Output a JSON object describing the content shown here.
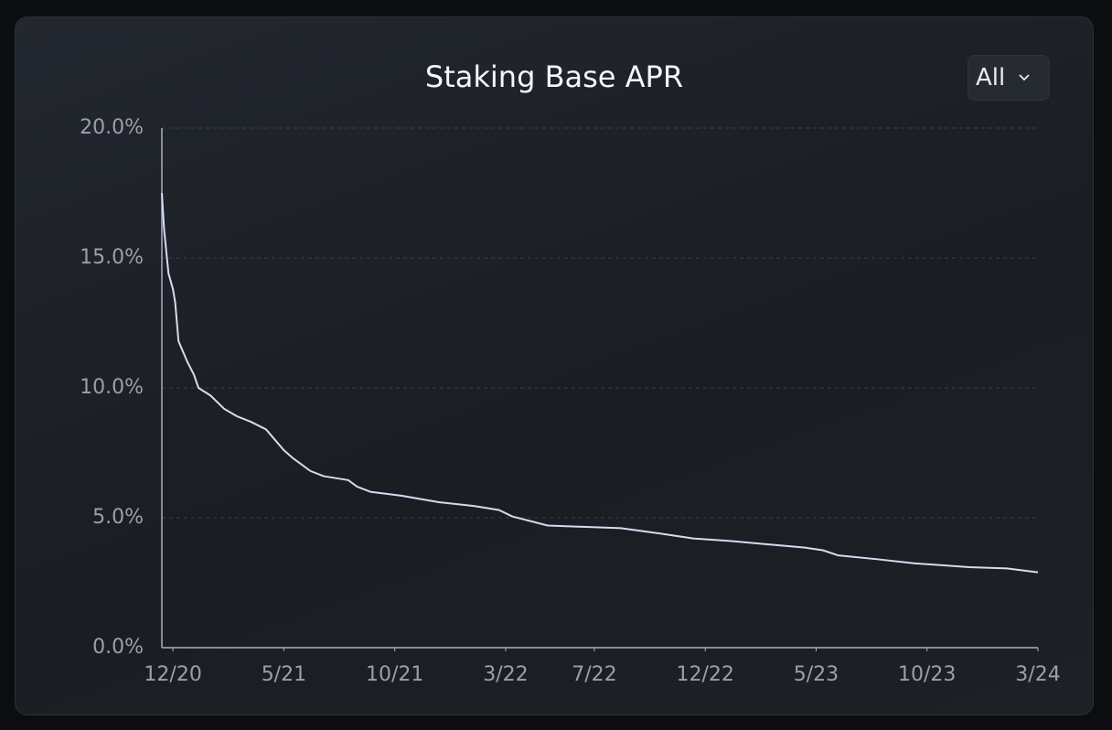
{
  "chart_data": {
    "type": "line",
    "title": "Staking Base APR",
    "range_selector": "All",
    "x": [
      -0.5,
      -0.4,
      -0.2,
      0,
      0.1,
      0.25,
      0.65,
      0.95,
      1.15,
      1.7,
      2.3,
      2.9,
      3.5,
      4.2,
      4.6,
      5,
      5.4,
      6.2,
      6.8,
      7.9,
      8.3,
      8.9,
      10.3,
      12,
      13.6,
      14.7,
      15.3,
      16.9,
      20.2,
      21.9,
      23.5,
      25.2,
      26.5,
      28.5,
      29.3,
      30,
      31.8,
      33.4,
      35.9,
      37.6,
      39
    ],
    "series": [
      {
        "name": "Staking Base APR",
        "color": "#d4dcf0",
        "values": [
          17.5,
          16.1,
          14.4,
          13.8,
          13.3,
          11.8,
          11.0,
          10.5,
          10.0,
          9.7,
          9.2,
          8.9,
          8.7,
          8.4,
          8.0,
          7.6,
          7.3,
          6.8,
          6.6,
          6.45,
          6.2,
          6.0,
          5.85,
          5.6,
          5.45,
          5.3,
          5.05,
          4.7,
          4.6,
          4.4,
          4.2,
          4.1,
          4.0,
          3.85,
          3.75,
          3.55,
          3.4,
          3.25,
          3.1,
          3.05,
          2.9
        ]
      }
    ],
    "xlim": [
      -0.5,
      39
    ],
    "xticks": [
      {
        "value": 0,
        "label": "12/20"
      },
      {
        "value": 5,
        "label": "5/21"
      },
      {
        "value": 10,
        "label": "10/21"
      },
      {
        "value": 15,
        "label": "3/22"
      },
      {
        "value": 19,
        "label": "7/22"
      },
      {
        "value": 24,
        "label": "12/22"
      },
      {
        "value": 29,
        "label": "5/23"
      },
      {
        "value": 34,
        "label": "10/23"
      },
      {
        "value": 39,
        "label": "3/24"
      }
    ],
    "ylim": [
      0,
      20
    ],
    "yticks": [
      {
        "value": 0,
        "label": "0.0%"
      },
      {
        "value": 5,
        "label": "5.0%"
      },
      {
        "value": 10,
        "label": "10.0%"
      },
      {
        "value": 15,
        "label": "15.0%"
      },
      {
        "value": 20,
        "label": "20.0%"
      }
    ],
    "grid": true
  }
}
